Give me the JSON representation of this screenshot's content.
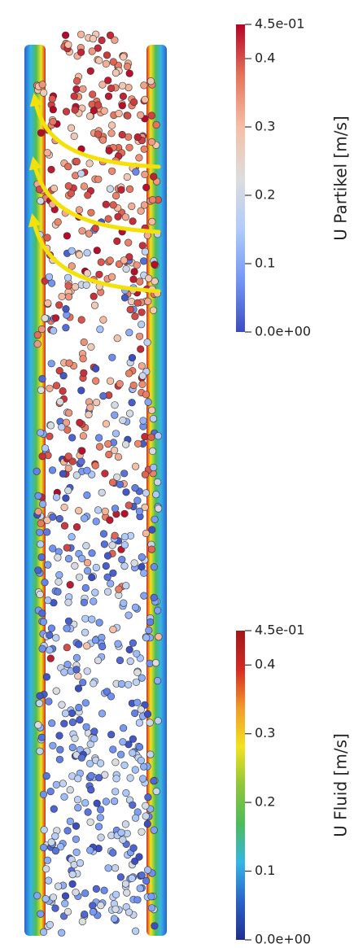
{
  "colorbars": [
    {
      "title": "U Partikel [m/s]",
      "lim": [
        0,
        0.45
      ],
      "ticks": [
        {
          "value": 0.45,
          "label": "4.5e-01"
        },
        0.4,
        0.3,
        0.2,
        0.1,
        {
          "value": 0,
          "label": "0.0e+00"
        }
      ],
      "colors": [
        "#3b4cc0",
        "#7396f5",
        "#b0cbfc",
        "#dddddd",
        "#f6bfa6",
        "#e7745b",
        "#b40426"
      ]
    },
    {
      "title": "U Fluid [m/s]",
      "lim": [
        0,
        0.45
      ],
      "ticks": [
        {
          "value": 0.45,
          "label": "4.5e-01"
        },
        0.4,
        0.3,
        0.2,
        0.1,
        {
          "value": 0,
          "label": "0.0e+00"
        }
      ],
      "colors": [
        "#1f2f8f",
        "#2a62c9",
        "#35b6e6",
        "#4dbb5a",
        "#8fc63a",
        "#f2e31e",
        "#f39a2a",
        "#d42a22",
        "#a01818"
      ]
    }
  ]
}
